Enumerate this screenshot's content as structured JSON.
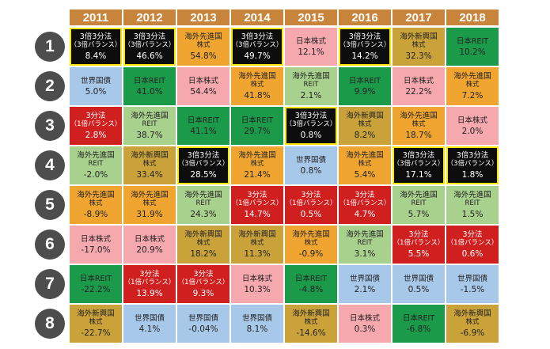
{
  "chart_data": {
    "type": "table",
    "title": "",
    "columns": [
      "2011",
      "2012",
      "2013",
      "2014",
      "2015",
      "2016",
      "2017",
      "2018"
    ],
    "ranks": [
      "1",
      "2",
      "3",
      "4",
      "5",
      "6",
      "7",
      "8"
    ],
    "highlight_asset": "3倍3分法（3倍バランス）",
    "colors": {
      "header": "#c8843a",
      "rank_circle": "#4d4d4d",
      "highlight_border": "#ffe600",
      "3倍3分法": "#0d0d0d",
      "3分法": "#d01f1f",
      "日本株式": "#f5a8ae",
      "日本REIT": "#1b9a4a",
      "世界国債": "#a8c8ea",
      "海外先進国株式": "#f0a530",
      "海外先進国REIT": "#a9d18e",
      "海外新興国株式": "#c9a23a"
    },
    "cells": [
      [
        {
          "name_lines": [
            "3倍3分法",
            "（3倍バランス）"
          ],
          "value": "8.4%",
          "asset": "3倍3分法"
        },
        {
          "name_lines": [
            "3倍3分法",
            "（3倍バランス）"
          ],
          "value": "46.6%",
          "asset": "3倍3分法"
        },
        {
          "name_lines": [
            "海外先進国",
            "株式"
          ],
          "value": "54.8%",
          "asset": "海外先進国株式"
        },
        {
          "name_lines": [
            "3倍3分法",
            "（3倍バランス）"
          ],
          "value": "49.7%",
          "asset": "3倍3分法"
        },
        {
          "name_lines": [
            "日本株式"
          ],
          "value": "12.1%",
          "asset": "日本株式"
        },
        {
          "name_lines": [
            "3倍3分法",
            "（3倍バランス）"
          ],
          "value": "14.2%",
          "asset": "3倍3分法"
        },
        {
          "name_lines": [
            "海外新興国",
            "株式"
          ],
          "value": "32.3%",
          "asset": "海外新興国株式"
        },
        {
          "name_lines": [
            "日本REIT"
          ],
          "value": "10.2%",
          "asset": "日本REIT"
        }
      ],
      [
        {
          "name_lines": [
            "世界国債"
          ],
          "value": "5.0%",
          "asset": "世界国債"
        },
        {
          "name_lines": [
            "日本REIT"
          ],
          "value": "41.0%",
          "asset": "日本REIT"
        },
        {
          "name_lines": [
            "日本株式"
          ],
          "value": "54.4%",
          "asset": "日本株式"
        },
        {
          "name_lines": [
            "海外先進国",
            "株式"
          ],
          "value": "41.8%",
          "asset": "海外先進国株式"
        },
        {
          "name_lines": [
            "海外先進国",
            "REIT"
          ],
          "value": "2.1%",
          "asset": "海外先進国REIT"
        },
        {
          "name_lines": [
            "日本REIT"
          ],
          "value": "9.9%",
          "asset": "日本REIT"
        },
        {
          "name_lines": [
            "日本株式"
          ],
          "value": "22.2%",
          "asset": "日本株式"
        },
        {
          "name_lines": [
            "海外先進国",
            "株式"
          ],
          "value": "7.2%",
          "asset": "海外先進国株式"
        }
      ],
      [
        {
          "name_lines": [
            "3分法",
            "（1倍バランス）"
          ],
          "value": "2.8%",
          "asset": "3分法"
        },
        {
          "name_lines": [
            "海外先進国",
            "REIT"
          ],
          "value": "38.7%",
          "asset": "海外先進国REIT"
        },
        {
          "name_lines": [
            "日本REIT"
          ],
          "value": "41.1%",
          "asset": "日本REIT"
        },
        {
          "name_lines": [
            "日本REIT"
          ],
          "value": "29.7%",
          "asset": "日本REIT"
        },
        {
          "name_lines": [
            "3倍3分法",
            "（3倍バランス）"
          ],
          "value": "0.8%",
          "asset": "3倍3分法"
        },
        {
          "name_lines": [
            "海外新興国",
            "株式"
          ],
          "value": "8.2%",
          "asset": "海外新興国株式"
        },
        {
          "name_lines": [
            "海外先進国",
            "株式"
          ],
          "value": "18.7%",
          "asset": "海外先進国株式"
        },
        {
          "name_lines": [
            "日本株式"
          ],
          "value": "2.0%",
          "asset": "日本株式"
        }
      ],
      [
        {
          "name_lines": [
            "海外先進国",
            "REIT"
          ],
          "value": "-2.0%",
          "asset": "海外先進国REIT"
        },
        {
          "name_lines": [
            "海外新興国",
            "株式"
          ],
          "value": "33.4%",
          "asset": "海外新興国株式"
        },
        {
          "name_lines": [
            "3倍3分法",
            "（3倍バランス）"
          ],
          "value": "28.5%",
          "asset": "3倍3分法"
        },
        {
          "name_lines": [
            "海外先進国",
            "株式"
          ],
          "value": "21.4%",
          "asset": "海外先進国株式"
        },
        {
          "name_lines": [
            "世界国債"
          ],
          "value": "0.8%",
          "asset": "世界国債"
        },
        {
          "name_lines": [
            "海外先進国",
            "株式"
          ],
          "value": "5.4%",
          "asset": "海外先進国株式"
        },
        {
          "name_lines": [
            "3倍3分法",
            "（3倍バランス）"
          ],
          "value": "17.1%",
          "asset": "3倍3分法"
        },
        {
          "name_lines": [
            "3倍3分法",
            "（3倍バランス）"
          ],
          "value": "1.8%",
          "asset": "3倍3分法"
        }
      ],
      [
        {
          "name_lines": [
            "海外先進国",
            "株式"
          ],
          "value": "-8.9%",
          "asset": "海外先進国株式"
        },
        {
          "name_lines": [
            "海外先進国",
            "株式"
          ],
          "value": "31.9%",
          "asset": "海外先進国株式"
        },
        {
          "name_lines": [
            "海外先進国",
            "REIT"
          ],
          "value": "24.3%",
          "asset": "海外先進国REIT"
        },
        {
          "name_lines": [
            "3分法",
            "（1倍バランス）"
          ],
          "value": "14.7%",
          "asset": "3分法"
        },
        {
          "name_lines": [
            "3分法",
            "（1倍バランス）"
          ],
          "value": "0.5%",
          "asset": "3分法"
        },
        {
          "name_lines": [
            "3分法",
            "（1倍バランス）"
          ],
          "value": "4.7%",
          "asset": "3分法"
        },
        {
          "name_lines": [
            "海外先進国",
            "REIT"
          ],
          "value": "5.7%",
          "asset": "海外先進国REIT"
        },
        {
          "name_lines": [
            "海外先進国",
            "REIT"
          ],
          "value": "1.5%",
          "asset": "海外先進国REIT"
        }
      ],
      [
        {
          "name_lines": [
            "日本株式"
          ],
          "value": "-17.0%",
          "asset": "日本株式"
        },
        {
          "name_lines": [
            "日本株式"
          ],
          "value": "20.9%",
          "asset": "日本株式"
        },
        {
          "name_lines": [
            "海外新興国",
            "株式"
          ],
          "value": "18.2%",
          "asset": "海外新興国株式"
        },
        {
          "name_lines": [
            "海外新興国",
            "株式"
          ],
          "value": "11.3%",
          "asset": "海外新興国株式"
        },
        {
          "name_lines": [
            "海外先進国",
            "株式"
          ],
          "value": "-0.9%",
          "asset": "海外先進国株式"
        },
        {
          "name_lines": [
            "海外先進国",
            "REIT"
          ],
          "value": "3.1%",
          "asset": "海外先進国REIT"
        },
        {
          "name_lines": [
            "3分法",
            "（1倍バランス）"
          ],
          "value": "5.5%",
          "asset": "3分法"
        },
        {
          "name_lines": [
            "3分法",
            "（1倍バランス）"
          ],
          "value": "0.6%",
          "asset": "3分法"
        }
      ],
      [
        {
          "name_lines": [
            "日本REIT"
          ],
          "value": "-22.2%",
          "asset": "日本REIT"
        },
        {
          "name_lines": [
            "3分法",
            "（1倍バランス）"
          ],
          "value": "13.9%",
          "asset": "3分法"
        },
        {
          "name_lines": [
            "3分法",
            "（1倍バランス）"
          ],
          "value": "9.3%",
          "asset": "3分法"
        },
        {
          "name_lines": [
            "日本株式"
          ],
          "value": "10.3%",
          "asset": "日本株式"
        },
        {
          "name_lines": [
            "日本REIT"
          ],
          "value": "-4.8%",
          "asset": "日本REIT"
        },
        {
          "name_lines": [
            "世界国債"
          ],
          "value": "2.1%",
          "asset": "世界国債"
        },
        {
          "name_lines": [
            "世界国債"
          ],
          "value": "0.5%",
          "asset": "世界国債"
        },
        {
          "name_lines": [
            "世界国債"
          ],
          "value": "-1.5%",
          "asset": "世界国債"
        }
      ],
      [
        {
          "name_lines": [
            "海外新興国",
            "株式"
          ],
          "value": "-22.7%",
          "asset": "海外新興国株式"
        },
        {
          "name_lines": [
            "世界国債"
          ],
          "value": "4.1%",
          "asset": "世界国債"
        },
        {
          "name_lines": [
            "世界国債"
          ],
          "value": "-0.04%",
          "asset": "世界国債"
        },
        {
          "name_lines": [
            "世界国債"
          ],
          "value": "8.1%",
          "asset": "世界国債"
        },
        {
          "name_lines": [
            "海外新興国",
            "株式"
          ],
          "value": "-14.6%",
          "asset": "海外新興国株式"
        },
        {
          "name_lines": [
            "日本株式"
          ],
          "value": "0.3%",
          "asset": "日本株式"
        },
        {
          "name_lines": [
            "日本REIT"
          ],
          "value": "-6.8%",
          "asset": "日本REIT"
        },
        {
          "name_lines": [
            "海外新興国",
            "株式"
          ],
          "value": "-6.9%",
          "asset": "海外新興国株式"
        }
      ]
    ]
  }
}
